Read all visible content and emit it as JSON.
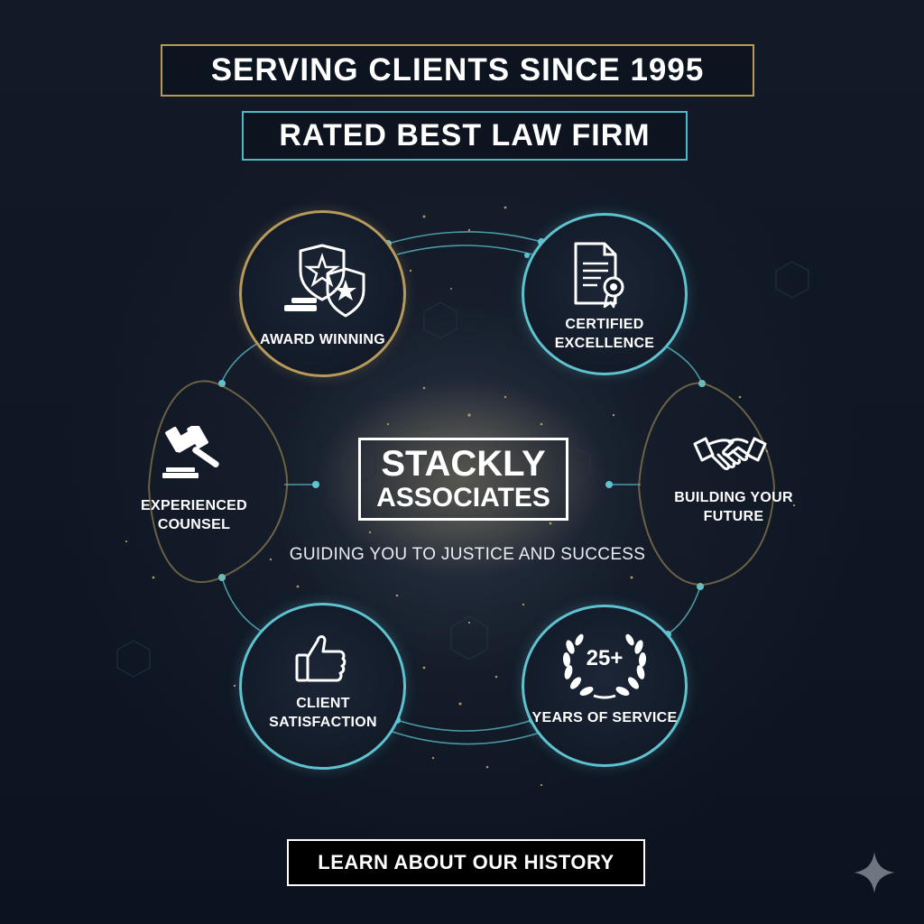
{
  "header": {
    "title": "SERVING CLIENTS SINCE 1995",
    "subtitle": "RATED BEST LAW FIRM"
  },
  "center": {
    "logo_line1": "STACKLY",
    "logo_line2": "ASSOCIATES",
    "tagline": "GUIDING YOU TO JUSTICE AND SUCCESS"
  },
  "features": [
    {
      "label": "AWARD WINNING",
      "icon": "shield-star-award-icon"
    },
    {
      "label": "CERTIFIED\nEXCELLENCE",
      "icon": "certificate-icon"
    },
    {
      "label": "EXPERIENCED\nCOUNSEL",
      "icon": "gavel-icon"
    },
    {
      "label": "BUILDING YOUR\nFUTURE",
      "icon": "handshake-icon"
    },
    {
      "label": "CLIENT\nSATISFACTION",
      "icon": "thumbs-up-icon"
    },
    {
      "label": "YEARS OF SERVICE",
      "icon": "laurel-wreath-icon",
      "badge": "25+"
    }
  ],
  "cta": {
    "label": "LEARN ABOUT OUR HISTORY"
  },
  "colors": {
    "background": "#0f1624",
    "gold_accent": "#b89a55",
    "cyan_accent": "#4fb8c9",
    "text": "#ffffff"
  }
}
